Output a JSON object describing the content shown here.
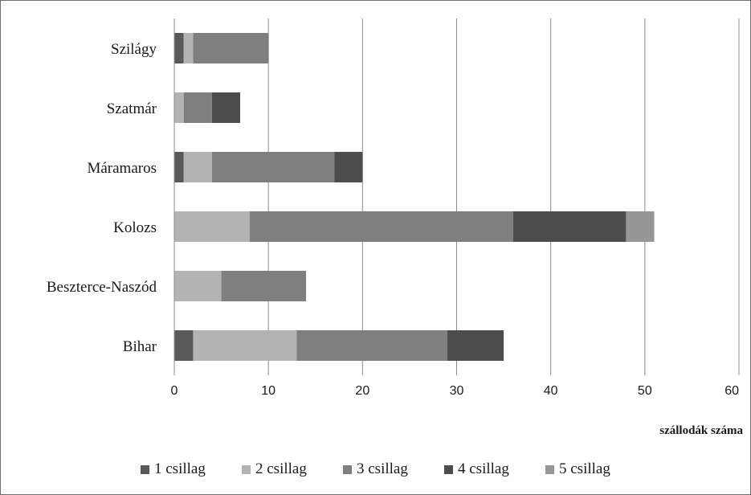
{
  "chart_data": {
    "type": "bar",
    "orientation": "horizontal",
    "stacked": true,
    "categories": [
      "Bihar",
      "Beszterce-Naszód",
      "Kolozs",
      "Máramaros",
      "Szatmár",
      "Szilágy"
    ],
    "series": [
      {
        "name": "1 csillag",
        "color": "#595959",
        "values": [
          2,
          0,
          0,
          1,
          0,
          1
        ]
      },
      {
        "name": "2 csillag",
        "color": "#b3b3b3",
        "values": [
          11,
          5,
          8,
          3,
          1,
          1
        ]
      },
      {
        "name": "3 csillag",
        "color": "#7f7f7f",
        "values": [
          16,
          9,
          28,
          13,
          3,
          8
        ]
      },
      {
        "name": "4 csillag",
        "color": "#4d4d4d",
        "values": [
          6,
          0,
          12,
          3,
          3,
          0
        ]
      },
      {
        "name": "5 csillag",
        "color": "#969696",
        "values": [
          0,
          0,
          3,
          0,
          0,
          0
        ]
      }
    ],
    "xlabel": "szállodák száma",
    "xlim": [
      0,
      60
    ],
    "xticks": [
      "0",
      "10",
      "20",
      "30",
      "40",
      "50",
      "60"
    ],
    "grid": "vertical",
    "legend_position": "bottom"
  }
}
